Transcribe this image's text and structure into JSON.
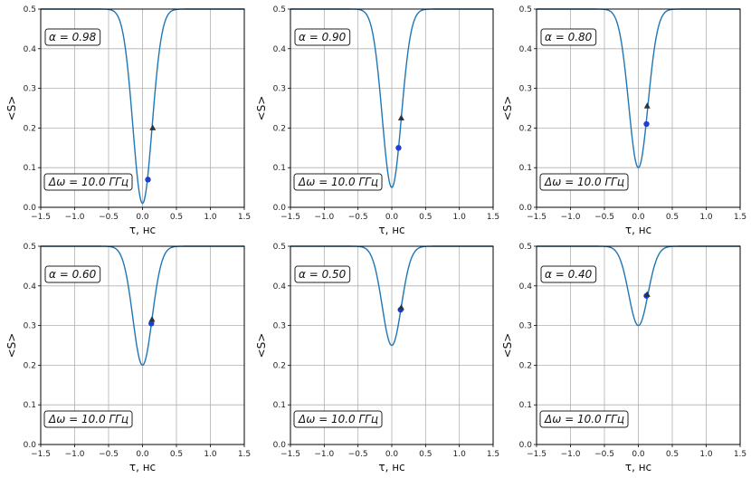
{
  "chart_data": [
    {
      "type": "line",
      "alpha_label": "α = 0.98",
      "domega_label": "Δω = 10.0 ГГц",
      "xlabel": "τ, нс",
      "ylabel": "<S>",
      "xlim": [
        -1.5,
        1.5
      ],
      "ylim": [
        0,
        0.5
      ],
      "xticks": [
        "−1.5",
        "−1.0",
        "−0.5",
        "0.0",
        "0.5",
        "1.0",
        "1.5"
      ],
      "yticks": [
        "0.0",
        "0.1",
        "0.2",
        "0.3",
        "0.4",
        "0.5"
      ],
      "grid": true,
      "series": [
        {
          "alpha": 0.98,
          "min_x": 0.0,
          "min_y": 0.01,
          "width": 0.2,
          "plateau": 0.5
        }
      ],
      "markers": [
        {
          "shape": "circle",
          "x": 0.08,
          "y": 0.07,
          "color": "#1f3fd4"
        },
        {
          "shape": "triangle",
          "x": 0.15,
          "y": 0.2,
          "color": "#2a3540"
        }
      ]
    },
    {
      "type": "line",
      "alpha_label": "α = 0.90",
      "domega_label": "Δω = 10.0 ГГц",
      "xlabel": "τ, нс",
      "ylabel": "<S>",
      "xlim": [
        -1.5,
        1.5
      ],
      "ylim": [
        0,
        0.5
      ],
      "xticks": [
        "−1.5",
        "−1.0",
        "−0.5",
        "0.0",
        "0.5",
        "1.0",
        "1.5"
      ],
      "yticks": [
        "0.0",
        "0.1",
        "0.2",
        "0.3",
        "0.4",
        "0.5"
      ],
      "grid": true,
      "series": [
        {
          "alpha": 0.9,
          "min_x": 0.0,
          "min_y": 0.05,
          "width": 0.2,
          "plateau": 0.5
        }
      ],
      "markers": [
        {
          "shape": "circle",
          "x": 0.1,
          "y": 0.15,
          "color": "#1f3fd4"
        },
        {
          "shape": "triangle",
          "x": 0.14,
          "y": 0.225,
          "color": "#2a3540"
        }
      ]
    },
    {
      "type": "line",
      "alpha_label": "α = 0.80",
      "domega_label": "Δω = 10.0 ГГц",
      "xlabel": "τ, нс",
      "ylabel": "<S>",
      "xlim": [
        -1.5,
        1.5
      ],
      "ylim": [
        0,
        0.5
      ],
      "xticks": [
        "−1.5",
        "−1.0",
        "−0.5",
        "0.0",
        "0.5",
        "1.0",
        "1.5"
      ],
      "yticks": [
        "0.0",
        "0.1",
        "0.2",
        "0.3",
        "0.4",
        "0.5"
      ],
      "grid": true,
      "series": [
        {
          "alpha": 0.8,
          "min_x": 0.0,
          "min_y": 0.1,
          "width": 0.2,
          "plateau": 0.5
        }
      ],
      "markers": [
        {
          "shape": "circle",
          "x": 0.12,
          "y": 0.21,
          "color": "#1f3fd4"
        },
        {
          "shape": "triangle",
          "x": 0.13,
          "y": 0.255,
          "color": "#2a3540"
        }
      ]
    },
    {
      "type": "line",
      "alpha_label": "α = 0.60",
      "domega_label": "Δω = 10.0 ГГц",
      "xlabel": "τ, нс",
      "ylabel": "<S>",
      "xlim": [
        -1.5,
        1.5
      ],
      "ylim": [
        0,
        0.5
      ],
      "xticks": [
        "−1.5",
        "−1.0",
        "−0.5",
        "0.0",
        "0.5",
        "1.0",
        "1.5"
      ],
      "yticks": [
        "0.0",
        "0.1",
        "0.2",
        "0.3",
        "0.4",
        "0.5"
      ],
      "grid": true,
      "series": [
        {
          "alpha": 0.6,
          "min_x": 0.0,
          "min_y": 0.2,
          "width": 0.2,
          "plateau": 0.5
        }
      ],
      "markers": [
        {
          "shape": "circle",
          "x": 0.13,
          "y": 0.305,
          "color": "#1f3fd4"
        },
        {
          "shape": "triangle",
          "x": 0.14,
          "y": 0.315,
          "color": "#2a3540"
        }
      ]
    },
    {
      "type": "line",
      "alpha_label": "α = 0.50",
      "domega_label": "Δω = 10.0 ГГц",
      "xlabel": "τ, нс",
      "ylabel": "<S>",
      "xlim": [
        -1.5,
        1.5
      ],
      "ylim": [
        0,
        0.5
      ],
      "xticks": [
        "−1.5",
        "−1.0",
        "−0.5",
        "0.0",
        "0.5",
        "1.0",
        "1.5"
      ],
      "yticks": [
        "0.0",
        "0.1",
        "0.2",
        "0.3",
        "0.4",
        "0.5"
      ],
      "grid": true,
      "series": [
        {
          "alpha": 0.5,
          "min_x": 0.0,
          "min_y": 0.25,
          "width": 0.2,
          "plateau": 0.5
        }
      ],
      "markers": [
        {
          "shape": "circle",
          "x": 0.13,
          "y": 0.34,
          "color": "#1f3fd4"
        },
        {
          "shape": "triangle",
          "x": 0.14,
          "y": 0.345,
          "color": "#2a3540"
        }
      ]
    },
    {
      "type": "line",
      "alpha_label": "α = 0.40",
      "domega_label": "Δω = 10.0 ГГц",
      "xlabel": "τ, нс",
      "ylabel": "<S>",
      "xlim": [
        -1.5,
        1.5
      ],
      "ylim": [
        0,
        0.5
      ],
      "xticks": [
        "−1.5",
        "−1.0",
        "−0.5",
        "0.0",
        "0.5",
        "1.0",
        "1.5"
      ],
      "yticks": [
        "0.0",
        "0.1",
        "0.2",
        "0.3",
        "0.4",
        "0.5"
      ],
      "grid": true,
      "series": [
        {
          "alpha": 0.4,
          "min_x": 0.0,
          "min_y": 0.3,
          "width": 0.2,
          "plateau": 0.5
        }
      ],
      "markers": [
        {
          "shape": "circle",
          "x": 0.12,
          "y": 0.375,
          "color": "#1f3fd4"
        },
        {
          "shape": "triangle",
          "x": 0.13,
          "y": 0.378,
          "color": "#2a3540"
        }
      ]
    }
  ],
  "colors": {
    "line": "#1f77b4",
    "grid": "#b0b0b0",
    "box_edge": "#222222"
  }
}
